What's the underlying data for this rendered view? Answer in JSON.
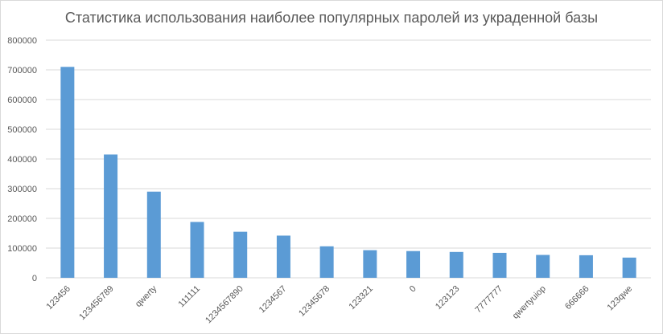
{
  "chart_data": {
    "type": "bar",
    "title": "Статистика использования наиболее популярных паролей из украденной базы",
    "xlabel": "",
    "ylabel": "",
    "categories": [
      "123456",
      "123456789",
      "qwerty",
      "111111",
      "1234567890",
      "1234567",
      "12345678",
      "123321",
      "0",
      "123123",
      "7777777",
      "qwertyuiop",
      "666666",
      "123qwe"
    ],
    "values": [
      710000,
      415000,
      290000,
      188000,
      155000,
      142000,
      106000,
      93000,
      90000,
      87000,
      84000,
      77000,
      76000,
      68000
    ],
    "ylim": [
      0,
      800000
    ],
    "yticks": [
      0,
      100000,
      200000,
      300000,
      400000,
      500000,
      600000,
      700000,
      800000
    ],
    "grid": true,
    "legend": "none",
    "bar_color": "#5b9bd5",
    "grid_color": "#d9d9d9"
  }
}
